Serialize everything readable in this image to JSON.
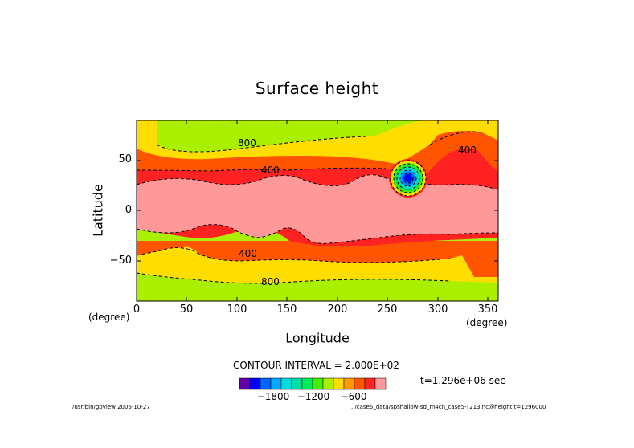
{
  "chart_data": {
    "type": "contour",
    "title": "Surface height",
    "xlabel": "Longitude",
    "ylabel": "Latitude",
    "x_unit": "(degree)",
    "y_unit": "(degree)",
    "xlim": [
      0,
      360
    ],
    "ylim": [
      -90,
      90
    ],
    "x_ticks": [
      "0",
      "50",
      "100",
      "150",
      "200",
      "250",
      "300",
      "350"
    ],
    "y_ticks": [
      "50",
      "0",
      "−50"
    ],
    "contour_labels": [
      "800",
      "400",
      "400",
      "400",
      "800"
    ],
    "contour_interval_text": "CONTOUR INTERVAL = 2.000E+02",
    "time_text": "t=1.296e+06 sec",
    "colorbar": {
      "tick_labels": [
        "−1800",
        "−1200",
        "−600"
      ],
      "colors": [
        "#6600aa",
        "#0000ff",
        "#0066ff",
        "#00aaff",
        "#00dddd",
        "#00ddaa",
        "#00ee55",
        "#44ee00",
        "#aaee00",
        "#ffdd00",
        "#ff9900",
        "#ff5500",
        "#ff2222",
        "#ff9999"
      ]
    },
    "bands_colors": {
      "h_neg_2000": "#0000ff",
      "h_neg_1000": "#00dddd",
      "h_neg_600": "#44ee00",
      "h_800": "#aaee00",
      "h_600": "#ffdd00",
      "h_400": "#ff5500",
      "h_200": "#ff2222",
      "h_0": "#ff9999"
    },
    "grid": false
  },
  "footer": {
    "left": "/usr/bin/gpview  2005-10-27",
    "right": "../case5_data/spshallow-sd_m4cn_case5-T213.nc@height,t=1296000"
  }
}
